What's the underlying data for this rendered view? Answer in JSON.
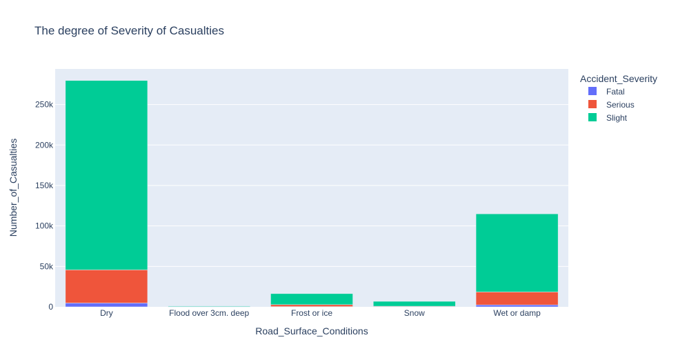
{
  "chart_data": {
    "type": "bar",
    "barmode": "stack",
    "title": "The degree of Severity of Casualties",
    "xlabel": "Road_Surface_Conditions",
    "ylabel": "Number_of_Casualties",
    "categories": [
      "Dry",
      "Flood over 3cm. deep",
      "Frost or ice",
      "Snow",
      "Wet or damp"
    ],
    "ylim": [
      0,
      294000
    ],
    "yticks": [
      0,
      50000,
      100000,
      150000,
      200000,
      250000
    ],
    "ytick_labels": [
      "0",
      "50k",
      "100k",
      "150k",
      "200k",
      "250k"
    ],
    "grid": true,
    "plot_background": "#E5ECF6",
    "legend": {
      "title": "Accident_Severity",
      "placement": "top-right, outside plot"
    },
    "series": [
      {
        "name": "Fatal",
        "color": "#636EFA",
        "values": [
          4700,
          30,
          300,
          90,
          2400
        ]
      },
      {
        "name": "Serious",
        "color": "#EF553B",
        "values": [
          41000,
          200,
          2400,
          700,
          16000
        ]
      },
      {
        "name": "Slight",
        "color": "#00CC96",
        "values": [
          234000,
          700,
          13600,
          6000,
          96500
        ]
      }
    ]
  }
}
